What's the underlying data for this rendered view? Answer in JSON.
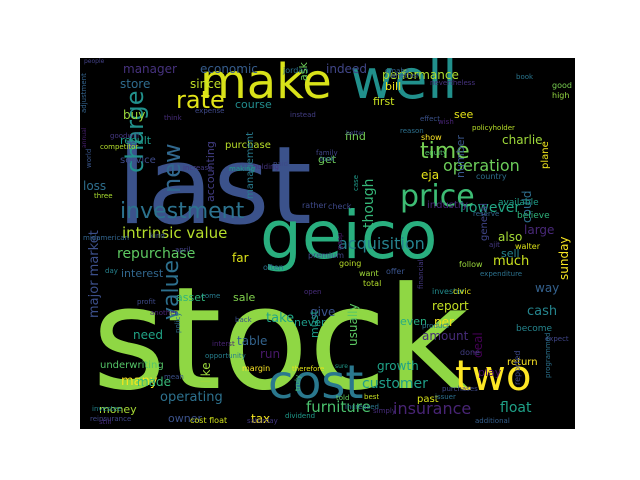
{
  "words": [
    {
      "text": "stock",
      "color": "#8fd744"
    },
    {
      "text": "last",
      "color": "#3b528b"
    },
    {
      "text": "make",
      "color": "#d8e219"
    },
    {
      "text": "well",
      "color": "#21908c"
    },
    {
      "text": "geico",
      "color": "#29af7f"
    },
    {
      "text": "cost",
      "color": "#2a788e"
    },
    {
      "text": "two",
      "color": "#fde725"
    },
    {
      "text": "price",
      "color": "#3dbc74"
    },
    {
      "text": "time",
      "color": "#75d054"
    },
    {
      "text": "investment",
      "color": "#2c728e"
    },
    {
      "text": "rate",
      "color": "#e2e418"
    },
    {
      "text": "charge",
      "color": "#21918c"
    },
    {
      "text": "new",
      "color": "#31688e"
    },
    {
      "text": "value",
      "color": "#2d708e"
    },
    {
      "text": "intrinsic value",
      "color": "#b5de2b"
    },
    {
      "text": "operation",
      "color": "#6ccd5a"
    },
    {
      "text": "furniture",
      "color": "#4ac16d"
    },
    {
      "text": "insurance",
      "color": "#482475"
    },
    {
      "text": "acquisition",
      "color": "#26828e"
    },
    {
      "text": "however",
      "color": "#22a785"
    },
    {
      "text": "repurchase",
      "color": "#5ec962"
    },
    {
      "text": "customer",
      "color": "#1f9e89"
    },
    {
      "text": "float",
      "color": "#1fa188"
    },
    {
      "text": "much",
      "color": "#cae11f"
    },
    {
      "text": "though",
      "color": "#35b779"
    },
    {
      "text": "performance",
      "color": "#addc30"
    },
    {
      "text": "manager",
      "color": "#46327e"
    },
    {
      "text": "economic",
      "color": "#365d8d"
    },
    {
      "text": "indeed",
      "color": "#404688"
    },
    {
      "text": "accounting",
      "color": "#433e85"
    },
    {
      "text": "also",
      "color": "#a5db36"
    },
    {
      "text": "large",
      "color": "#482878"
    },
    {
      "text": "sell",
      "color": "#25848e"
    },
    {
      "text": "way",
      "color": "#34618d"
    },
    {
      "text": "store",
      "color": "#2f6c8e"
    },
    {
      "text": "since",
      "color": "#c0df25"
    },
    {
      "text": "course",
      "color": "#228c8d"
    },
    {
      "text": "purchase",
      "color": "#b8de29"
    },
    {
      "text": "buy",
      "color": "#9bd93c"
    },
    {
      "text": "result",
      "color": "#1e9b8a"
    },
    {
      "text": "service",
      "color": "#3e4a89"
    },
    {
      "text": "loss",
      "color": "#2e6f8e"
    },
    {
      "text": "management",
      "color": "#297b8e"
    },
    {
      "text": "charlie",
      "color": "#9fda3a"
    },
    {
      "text": "eja",
      "color": "#e5e419"
    },
    {
      "text": "number",
      "color": "#39568c"
    },
    {
      "text": "could",
      "color": "#2e6e8e"
    },
    {
      "text": "interest",
      "color": "#31678e"
    },
    {
      "text": "asset",
      "color": "#31b57b"
    },
    {
      "text": "sale",
      "color": "#81d34d"
    },
    {
      "text": "far",
      "color": "#dde318"
    },
    {
      "text": "never",
      "color": "#1e9c89"
    },
    {
      "text": "report",
      "color": "#c2df23"
    },
    {
      "text": "cash",
      "color": "#25858e"
    },
    {
      "text": "sunday",
      "color": "#f8e621"
    },
    {
      "text": "even",
      "color": "#27ad81"
    },
    {
      "text": "per",
      "color": "#f1e51d"
    },
    {
      "text": "amount",
      "color": "#472c7a"
    },
    {
      "text": "deal",
      "color": "#440154"
    },
    {
      "text": "major market",
      "color": "#3c4f8a"
    },
    {
      "text": "need",
      "color": "#20a386"
    },
    {
      "text": "take",
      "color": "#20a486"
    },
    {
      "text": "table",
      "color": "#33638d"
    },
    {
      "text": "run",
      "color": "#48186a"
    },
    {
      "text": "give",
      "color": "#3a548c"
    },
    {
      "text": "must",
      "color": "#1f9a8a"
    },
    {
      "text": "usually",
      "color": "#5cc863"
    },
    {
      "text": "growth",
      "color": "#1fa287"
    },
    {
      "text": "many",
      "color": "#f4e61e"
    },
    {
      "text": "made",
      "color": "#37b878"
    },
    {
      "text": "like",
      "color": "#9bd93c"
    },
    {
      "text": "underwriting",
      "color": "#54c568"
    },
    {
      "text": "operating",
      "color": "#2d718e"
    },
    {
      "text": "money",
      "color": "#a8db34"
    },
    {
      "text": "owner",
      "color": "#3b528b"
    },
    {
      "text": "tax",
      "color": "#f6e620"
    },
    {
      "text": "play",
      "color": "#471063"
    },
    {
      "text": "plane",
      "color": "#efe51c"
    },
    {
      "text": "general",
      "color": "#404588"
    },
    {
      "text": "competitor",
      "color": "#b4de2c"
    },
    {
      "text": "cost float",
      "color": "#d0e11c"
    },
    {
      "text": "reinsurance",
      "color": "#3f4788"
    },
    {
      "text": "investee",
      "color": "#24878e"
    },
    {
      "text": "increase",
      "color": "#443983"
    },
    {
      "text": "holding",
      "color": "#46337f"
    },
    {
      "text": "making",
      "color": "#1e9d89"
    },
    {
      "text": "paid",
      "color": "#3e4989"
    },
    {
      "text": "opportunity",
      "color": "#277f8e"
    },
    {
      "text": "interst",
      "color": "#482374"
    },
    {
      "text": "midamerican",
      "color": "#32658e"
    },
    {
      "text": "kind",
      "color": "#3b528b"
    },
    {
      "text": "april",
      "color": "#424186"
    },
    {
      "text": "day",
      "color": "#26828e"
    },
    {
      "text": "come",
      "color": "#287c8e"
    },
    {
      "text": "profit",
      "color": "#3e4a89"
    },
    {
      "text": "policy",
      "color": "#2e6e8e"
    },
    {
      "text": "another",
      "color": "#482575"
    },
    {
      "text": "margin",
      "color": "#fde725"
    },
    {
      "text": "therefore",
      "color": "#e2e418"
    },
    {
      "text": "truly",
      "color": "#4ac16d"
    },
    {
      "text": "best",
      "color": "#c8e020"
    },
    {
      "text": "told",
      "color": "#63cb5f"
    },
    {
      "text": "increased",
      "color": "#2a768e"
    },
    {
      "text": "saturday",
      "color": "#443983"
    },
    {
      "text": "dividend",
      "color": "#1f9a8a"
    },
    {
      "text": "additional",
      "color": "#355f8d"
    },
    {
      "text": "still",
      "color": "#472c7a"
    },
    {
      "text": "mean",
      "color": "#3b518b"
    },
    {
      "text": "three",
      "color": "#ade130"
    },
    {
      "text": "world",
      "color": "#39568c"
    },
    {
      "text": "annual",
      "color": "#481f70"
    },
    {
      "text": "goodwill",
      "color": "#453882"
    },
    {
      "text": "think",
      "color": "#472d7b"
    },
    {
      "text": "adjustment",
      "color": "#33638d"
    },
    {
      "text": "people",
      "color": "#424186"
    },
    {
      "text": "jordan",
      "color": "#2c728e"
    },
    {
      "text": "bill",
      "color": "#efe51c"
    },
    {
      "text": "first",
      "color": "#c8e020"
    },
    {
      "text": "find",
      "color": "#75d054"
    },
    {
      "text": "get",
      "color": "#6ccd5a"
    },
    {
      "text": "instead",
      "color": "#433e85"
    },
    {
      "text": "expense",
      "color": "#3e4989"
    },
    {
      "text": "omaha",
      "color": "#33638d"
    },
    {
      "text": "whether",
      "color": "#39568c"
    },
    {
      "text": "nevertheless",
      "color": "#46327e"
    },
    {
      "text": "book",
      "color": "#2a768e"
    },
    {
      "text": "good",
      "color": "#7ad151"
    },
    {
      "text": "high",
      "color": "#93d741"
    },
    {
      "text": "see",
      "color": "#e5e419"
    },
    {
      "text": "wish",
      "color": "#482475"
    },
    {
      "text": "effect",
      "color": "#3b528b"
    },
    {
      "text": "policyholder",
      "color": "#b8de29"
    },
    {
      "text": "show",
      "color": "#fde725"
    },
    {
      "text": "equity",
      "color": "#52c569"
    },
    {
      "text": "reason",
      "color": "#2d708e"
    },
    {
      "text": "better",
      "color": "#3e4a89"
    },
    {
      "text": "available",
      "color": "#1f9e89"
    },
    {
      "text": "believe",
      "color": "#2fb47c"
    },
    {
      "text": "country",
      "color": "#2e6e8e"
    },
    {
      "text": "industry",
      "color": "#482878"
    },
    {
      "text": "reserve",
      "color": "#31678e"
    },
    {
      "text": "rather",
      "color": "#3e4989"
    },
    {
      "text": "check",
      "color": "#3e4989"
    },
    {
      "text": "family",
      "color": "#404588"
    },
    {
      "text": "look",
      "color": "#33638d"
    },
    {
      "text": "case",
      "color": "#1f9a8a"
    },
    {
      "text": "gaap",
      "color": "#48186a"
    },
    {
      "text": "ajit",
      "color": "#453882"
    },
    {
      "text": "walter",
      "color": "#dde318"
    },
    {
      "text": "premium",
      "color": "#3f4788"
    },
    {
      "text": "often",
      "color": "#2e6f8e"
    },
    {
      "text": "going",
      "color": "#b8de29"
    },
    {
      "text": "want",
      "color": "#9fda3a"
    },
    {
      "text": "offer",
      "color": "#3a548c"
    },
    {
      "text": "follow",
      "color": "#9bd93c"
    },
    {
      "text": "expenditure",
      "color": "#2c728e"
    },
    {
      "text": "total",
      "color": "#b4de2c"
    },
    {
      "text": "investor",
      "color": "#228c8d"
    },
    {
      "text": "civic",
      "color": "#e5e419"
    },
    {
      "text": "financial",
      "color": "#453882"
    },
    {
      "text": "become",
      "color": "#25858e"
    },
    {
      "text": "expect",
      "color": "#404688"
    },
    {
      "text": "product",
      "color": "#2a788e"
    },
    {
      "text": "back",
      "color": "#3b528b"
    },
    {
      "text": "done",
      "color": "#433e85"
    },
    {
      "text": "past",
      "color": "#d8e219"
    },
    {
      "text": "return",
      "color": "#fde725"
    },
    {
      "text": "reported",
      "color": "#3e4989"
    },
    {
      "text": "purchases",
      "color": "#3e4a89"
    },
    {
      "text": "programmed",
      "color": "#2c728e"
    },
    {
      "text": "simply",
      "color": "#472d7b"
    },
    {
      "text": "issuer",
      "color": "#2d708e"
    },
    {
      "text": "sure",
      "color": "#1f9a8a"
    },
    {
      "text": "ask",
      "color": "#6ccd5a"
    },
    {
      "text": "open",
      "color": "#472c7a"
    }
  ]
}
